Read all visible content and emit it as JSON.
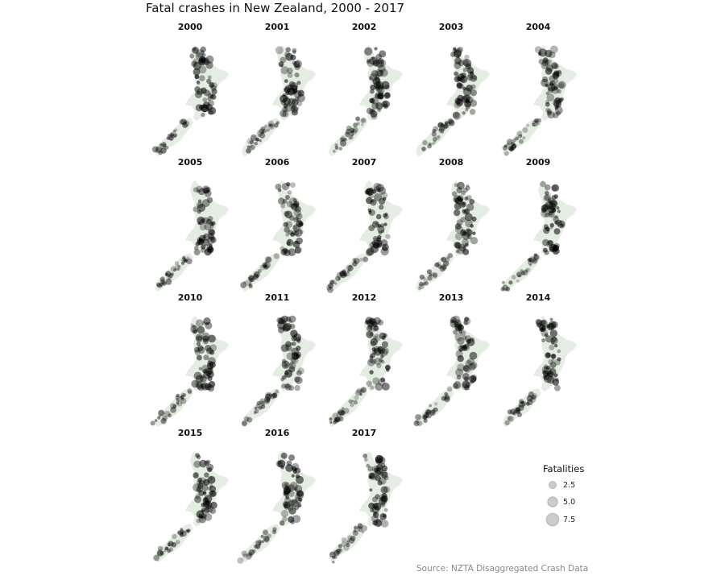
{
  "chart_data": {
    "type": "scatter",
    "title": "Fatal crashes in New Zealand, 2000 - 2017",
    "caption": "Source: NZTA Disaggregated Crash Data",
    "facets": [
      "2000",
      "2001",
      "2002",
      "2003",
      "2004",
      "2005",
      "2006",
      "2007",
      "2008",
      "2009",
      "2010",
      "2011",
      "2012",
      "2013",
      "2014",
      "2015",
      "2016",
      "2017"
    ],
    "legend": {
      "title": "Fatalities",
      "placement": "right",
      "entries": [
        {
          "label": "2.5",
          "value": 2.5
        },
        {
          "label": "5.0",
          "value": 5.0
        },
        {
          "label": "7.5",
          "value": 7.5
        }
      ]
    },
    "colors": {
      "land": "#e4ede2",
      "point_fill": "#000000",
      "legend_point": "#9a9a9a",
      "caption": "#888888"
    }
  }
}
